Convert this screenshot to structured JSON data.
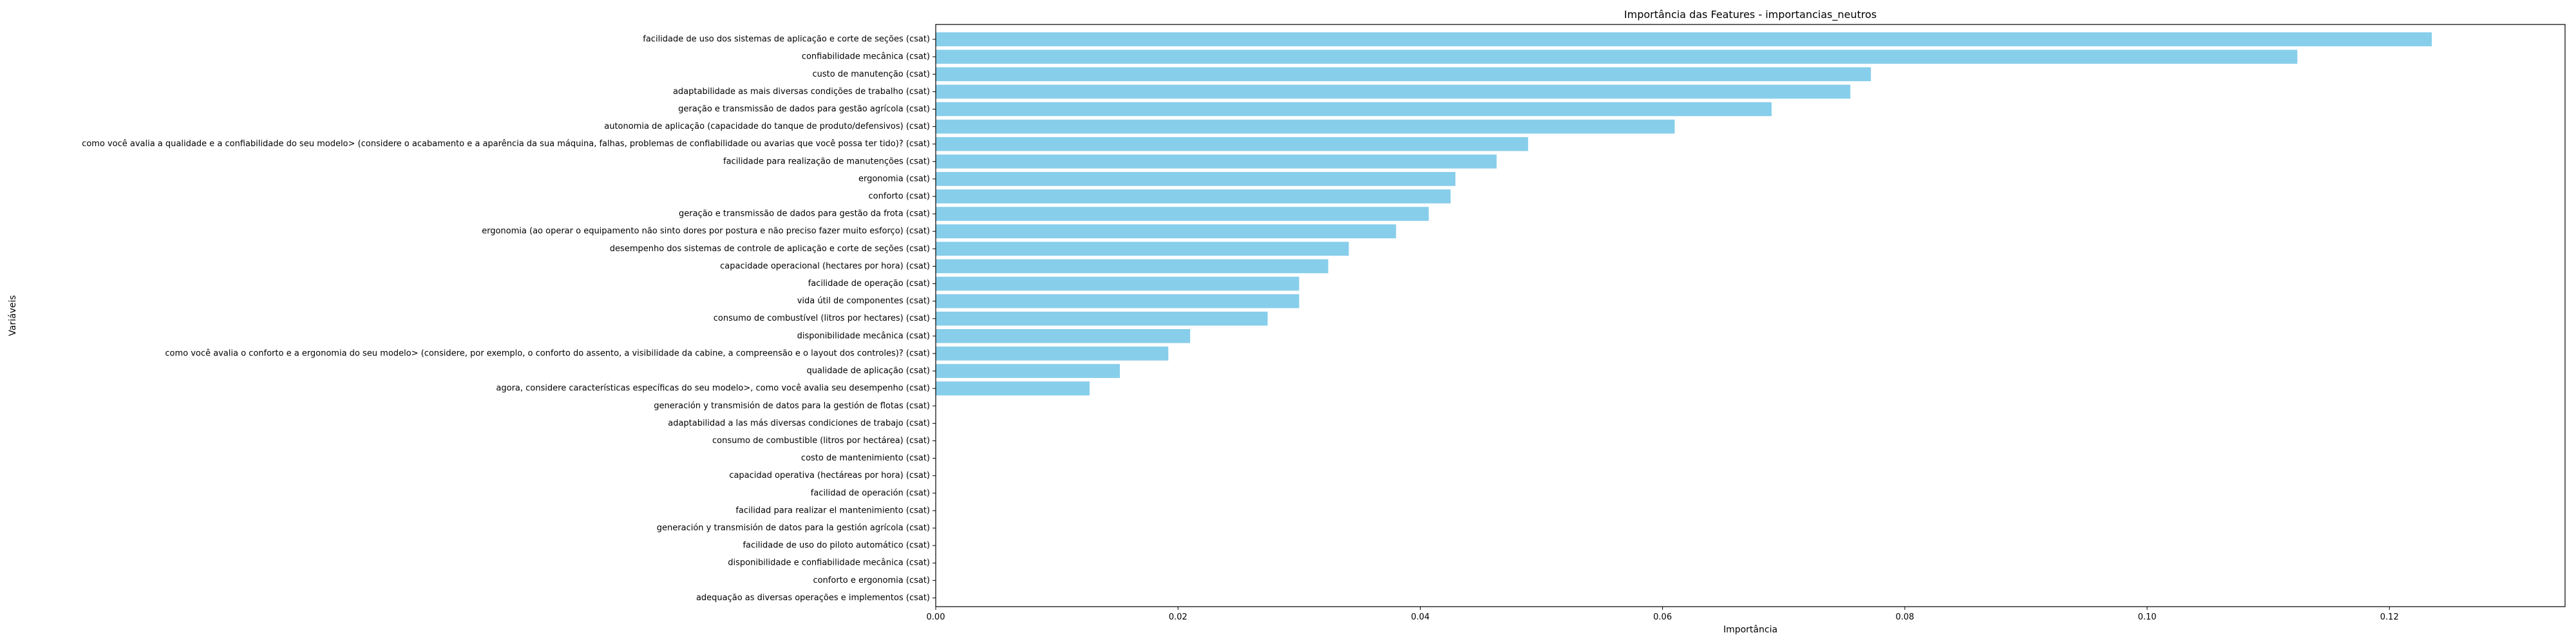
{
  "chart_data": {
    "type": "bar",
    "orientation": "horizontal",
    "title": "Importância das Features - importancias_neutros",
    "xlabel": "Importância",
    "ylabel": "Variáveis",
    "xlim": [
      0,
      0.1345
    ],
    "xticks": [
      0.0,
      0.02,
      0.04,
      0.06,
      0.08,
      0.1,
      0.12
    ],
    "xtick_labels": [
      "0.00",
      "0.02",
      "0.04",
      "0.06",
      "0.08",
      "0.10",
      "0.12"
    ],
    "bar_color": "#87ceeb",
    "grid": false,
    "categories": [
      "facilidade de uso dos sistemas de aplicação e corte de seções (csat)",
      "confiabilidade mecânica (csat)",
      "custo de manutenção (csat)",
      "adaptabilidade as mais diversas condições de trabalho (csat)",
      "geração e transmissão de dados para gestão agrícola (csat)",
      "autonomia de aplicação (capacidade do tanque de produto/defensivos) (csat)",
      "como você avalia a qualidade e a confiabilidade do seu modelo> (considere o acabamento e a aparência da sua máquina, falhas, problemas de confiabilidade ou avarias que você possa ter tido)? (csat)",
      "facilidade para realização de manutenções (csat)",
      "ergonomia (csat)",
      "conforto (csat)",
      "geração e transmissão de dados para gestão da frota (csat)",
      "ergonomia (ao operar o equipamento não sinto dores por postura e não preciso fazer muito esforço) (csat)",
      "desempenho dos sistemas de controle de aplicação e corte de seções (csat)",
      "capacidade operacional (hectares por hora) (csat)",
      "facilidade de operação (csat)",
      "vida útil de componentes (csat)",
      "consumo de combustível (litros por hectares) (csat)",
      "disponibilidade mecânica (csat)",
      "como você avalia o conforto e a ergonomia do seu modelo>  (considere, por exemplo, o conforto do assento, a visibilidade da cabine, a compreensão e o layout dos controles)? (csat)",
      "qualidade de aplicação (csat)",
      "agora, considere características específicas do seu modelo>, como você avalia seu desempenho (csat)",
      "generación y transmisión de datos para la gestión de flotas (csat)",
      "adaptabilidad a las más diversas condiciones de trabajo (csat)",
      "consumo de combustible (litros por hectárea) (csat)",
      "costo de mantenimiento (csat)",
      "capacidad operativa (hectáreas por hora) (csat)",
      "facilidad de operación (csat)",
      "facilidad para realizar el mantenimiento (csat)",
      "generación y transmisión de datos para la gestión agrícola (csat)",
      "facilidade de uso do piloto automático (csat)",
      "disponibilidade e confiabilidade mecânica  (csat)",
      "conforto e ergonomia (csat)",
      "adequação as diversas operações e implementos (csat)"
    ],
    "values": [
      0.1235,
      0.1124,
      0.0772,
      0.0755,
      0.069,
      0.061,
      0.0489,
      0.0463,
      0.0429,
      0.0425,
      0.0407,
      0.038,
      0.0341,
      0.0324,
      0.03,
      0.03,
      0.0274,
      0.021,
      0.0192,
      0.0152,
      0.0127,
      0,
      0,
      0,
      0,
      0,
      0,
      0,
      0,
      0,
      0,
      0,
      0
    ]
  }
}
